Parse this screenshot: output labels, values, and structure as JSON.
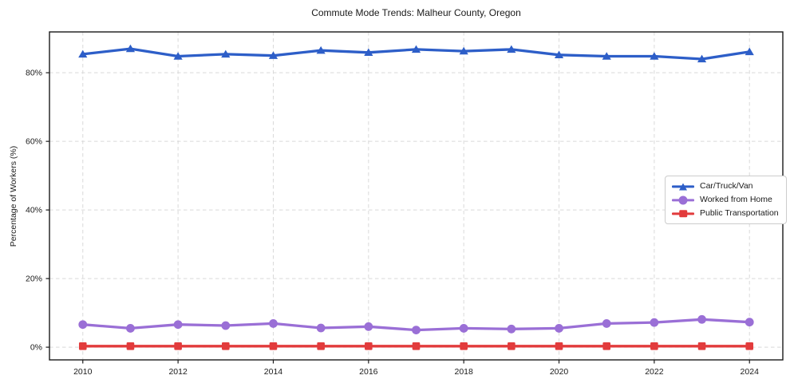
{
  "figure": {
    "title": "Commute Mode Trends: Malheur County, Oregon",
    "background_color": "#ffffff",
    "spine_color": "#1a1a1a",
    "grid_color": "#d9d9d9",
    "text_color": "#1a1a1a"
  },
  "chart_data": {
    "type": "line",
    "title": "Commute Mode Trends: Malheur County, Oregon",
    "xlabel": "",
    "ylabel": "Percentage of Workers (%)",
    "x": [
      2010,
      2011,
      2012,
      2013,
      2014,
      2015,
      2016,
      2017,
      2018,
      2019,
      2020,
      2021,
      2022,
      2023,
      2024
    ],
    "series": [
      {
        "name": "Car/Truck/Van",
        "color": "#2d5ec8",
        "marker": "triangle",
        "values": [
          85.4,
          87.0,
          84.8,
          85.4,
          85.0,
          86.5,
          85.9,
          86.8,
          86.3,
          86.8,
          85.2,
          84.8,
          84.8,
          84.0,
          86.1
        ]
      },
      {
        "name": "Worked from Home",
        "color": "#9a6fd6",
        "marker": "circle",
        "values": [
          6.6,
          5.5,
          6.6,
          6.3,
          6.9,
          5.6,
          6.0,
          5.0,
          5.5,
          5.3,
          5.5,
          6.9,
          7.2,
          8.1,
          7.3
        ]
      },
      {
        "name": "Public Transportation",
        "color": "#e23b3c",
        "marker": "square",
        "values": [
          0.3,
          0.3,
          0.3,
          0.3,
          0.3,
          0.3,
          0.3,
          0.3,
          0.3,
          0.3,
          0.3,
          0.3,
          0.3,
          0.3,
          0.3
        ]
      }
    ],
    "xtick_values": [
      2010,
      2012,
      2014,
      2016,
      2018,
      2020,
      2022,
      2024
    ],
    "xtick_labels": [
      "2010",
      "2012",
      "2014",
      "2016",
      "2018",
      "2020",
      "2022",
      "2024"
    ],
    "ytick_values": [
      0,
      20,
      40,
      60,
      80
    ],
    "ytick_labels": [
      "0%",
      "20%",
      "40%",
      "60%",
      "80%"
    ],
    "xlim": [
      2009.3,
      2024.7
    ],
    "ylim": [
      -3.7,
      91.9
    ],
    "grid": true,
    "grid_style": "dashed",
    "legend_position": "center-right"
  }
}
